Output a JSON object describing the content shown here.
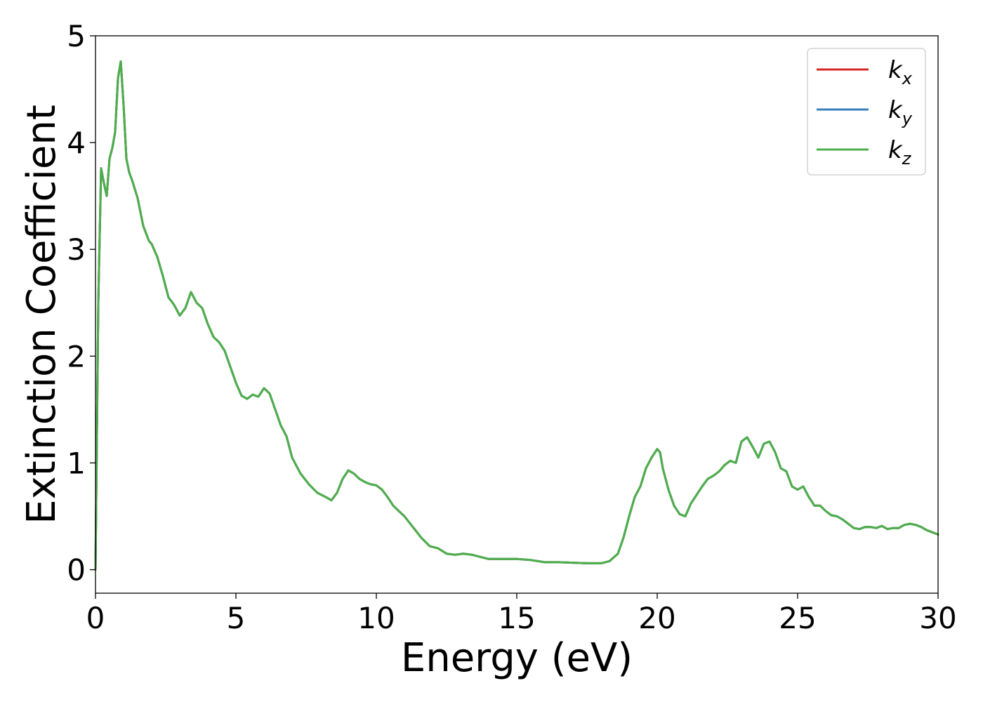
{
  "chart_data": {
    "type": "line",
    "title": "",
    "xlabel": "Energy (eV)",
    "ylabel": "Extinction Coefficient",
    "xlim": [
      0,
      30
    ],
    "ylim": [
      -0.22,
      5
    ],
    "xticks": [
      0,
      5,
      10,
      15,
      20,
      25,
      30
    ],
    "yticks": [
      0,
      1,
      2,
      3,
      4,
      5
    ],
    "grid": false,
    "legend_position": "top-right",
    "x": [
      0,
      0.1,
      0.2,
      0.3,
      0.4,
      0.5,
      0.6,
      0.7,
      0.8,
      0.9,
      1.0,
      1.1,
      1.2,
      1.3,
      1.5,
      1.7,
      1.9,
      2.0,
      2.2,
      2.4,
      2.6,
      2.8,
      3.0,
      3.2,
      3.4,
      3.6,
      3.8,
      4.0,
      4.2,
      4.4,
      4.6,
      4.8,
      5.0,
      5.2,
      5.4,
      5.6,
      5.8,
      6.0,
      6.2,
      6.4,
      6.6,
      6.8,
      7.0,
      7.3,
      7.6,
      7.9,
      8.2,
      8.4,
      8.6,
      8.8,
      9.0,
      9.2,
      9.4,
      9.6,
      9.8,
      10.0,
      10.2,
      10.4,
      10.6,
      10.8,
      11.0,
      11.3,
      11.6,
      11.9,
      12.2,
      12.5,
      12.8,
      13.1,
      13.4,
      13.7,
      14.0,
      14.5,
      15.0,
      15.5,
      16.0,
      16.5,
      17.0,
      17.5,
      18.0,
      18.3,
      18.6,
      18.8,
      19.0,
      19.2,
      19.4,
      19.6,
      19.8,
      20.0,
      20.1,
      20.2,
      20.4,
      20.6,
      20.8,
      21.0,
      21.2,
      21.4,
      21.6,
      21.8,
      22.0,
      22.2,
      22.4,
      22.6,
      22.8,
      23.0,
      23.2,
      23.4,
      23.6,
      23.8,
      24.0,
      24.2,
      24.4,
      24.6,
      24.8,
      25.0,
      25.2,
      25.4,
      25.6,
      25.8,
      26.0,
      26.2,
      26.4,
      26.6,
      26.8,
      27.0,
      27.2,
      27.4,
      27.6,
      27.8,
      28.0,
      28.2,
      28.4,
      28.6,
      28.8,
      29.0,
      29.2,
      29.4,
      29.6,
      29.8,
      30.0
    ],
    "series": [
      {
        "name": "k_x",
        "color": "#d62728",
        "values": [
          0,
          2.5,
          3.76,
          3.62,
          3.5,
          3.85,
          3.95,
          4.1,
          4.6,
          4.76,
          4.35,
          3.85,
          3.72,
          3.65,
          3.48,
          3.22,
          3.08,
          3.05,
          2.93,
          2.75,
          2.55,
          2.48,
          2.38,
          2.45,
          2.6,
          2.5,
          2.45,
          2.3,
          2.18,
          2.13,
          2.05,
          1.9,
          1.75,
          1.63,
          1.6,
          1.64,
          1.62,
          1.7,
          1.65,
          1.5,
          1.35,
          1.25,
          1.05,
          0.9,
          0.8,
          0.72,
          0.68,
          0.65,
          0.72,
          0.85,
          0.93,
          0.9,
          0.85,
          0.82,
          0.8,
          0.79,
          0.75,
          0.68,
          0.6,
          0.55,
          0.5,
          0.4,
          0.3,
          0.22,
          0.2,
          0.15,
          0.14,
          0.15,
          0.14,
          0.12,
          0.1,
          0.1,
          0.1,
          0.09,
          0.07,
          0.07,
          0.065,
          0.06,
          0.06,
          0.08,
          0.15,
          0.3,
          0.5,
          0.68,
          0.78,
          0.95,
          1.05,
          1.13,
          1.1,
          0.95,
          0.75,
          0.6,
          0.52,
          0.5,
          0.62,
          0.7,
          0.78,
          0.85,
          0.88,
          0.92,
          0.98,
          1.02,
          1.0,
          1.2,
          1.24,
          1.15,
          1.05,
          1.18,
          1.2,
          1.1,
          0.95,
          0.92,
          0.78,
          0.75,
          0.78,
          0.68,
          0.6,
          0.6,
          0.55,
          0.51,
          0.5,
          0.47,
          0.43,
          0.39,
          0.38,
          0.4,
          0.4,
          0.39,
          0.41,
          0.38,
          0.39,
          0.39,
          0.42,
          0.43,
          0.42,
          0.4,
          0.37,
          0.35,
          0.33
        ]
      },
      {
        "name": "k_y",
        "color": "#3a7dbf",
        "values": [
          0,
          2.5,
          3.76,
          3.62,
          3.5,
          3.85,
          3.95,
          4.1,
          4.6,
          4.76,
          4.35,
          3.85,
          3.72,
          3.65,
          3.48,
          3.22,
          3.08,
          3.05,
          2.93,
          2.75,
          2.55,
          2.48,
          2.38,
          2.45,
          2.6,
          2.5,
          2.45,
          2.3,
          2.18,
          2.13,
          2.05,
          1.9,
          1.75,
          1.63,
          1.6,
          1.64,
          1.62,
          1.7,
          1.65,
          1.5,
          1.35,
          1.25,
          1.05,
          0.9,
          0.8,
          0.72,
          0.68,
          0.65,
          0.72,
          0.85,
          0.93,
          0.9,
          0.85,
          0.82,
          0.8,
          0.79,
          0.75,
          0.68,
          0.6,
          0.55,
          0.5,
          0.4,
          0.3,
          0.22,
          0.2,
          0.15,
          0.14,
          0.15,
          0.14,
          0.12,
          0.1,
          0.1,
          0.1,
          0.09,
          0.07,
          0.07,
          0.065,
          0.06,
          0.06,
          0.08,
          0.15,
          0.3,
          0.5,
          0.68,
          0.78,
          0.95,
          1.05,
          1.13,
          1.1,
          0.95,
          0.75,
          0.6,
          0.52,
          0.5,
          0.62,
          0.7,
          0.78,
          0.85,
          0.88,
          0.92,
          0.98,
          1.02,
          1.0,
          1.2,
          1.24,
          1.15,
          1.05,
          1.18,
          1.2,
          1.1,
          0.95,
          0.92,
          0.78,
          0.75,
          0.78,
          0.68,
          0.6,
          0.6,
          0.55,
          0.51,
          0.5,
          0.47,
          0.43,
          0.39,
          0.38,
          0.4,
          0.4,
          0.39,
          0.41,
          0.38,
          0.39,
          0.39,
          0.42,
          0.43,
          0.42,
          0.4,
          0.37,
          0.35,
          0.33
        ]
      },
      {
        "name": "k_z",
        "color": "#4daf4a",
        "values": [
          0,
          2.5,
          3.76,
          3.62,
          3.5,
          3.85,
          3.95,
          4.1,
          4.6,
          4.76,
          4.35,
          3.85,
          3.72,
          3.65,
          3.48,
          3.22,
          3.08,
          3.05,
          2.93,
          2.75,
          2.55,
          2.48,
          2.38,
          2.45,
          2.6,
          2.5,
          2.45,
          2.3,
          2.18,
          2.13,
          2.05,
          1.9,
          1.75,
          1.63,
          1.6,
          1.64,
          1.62,
          1.7,
          1.65,
          1.5,
          1.35,
          1.25,
          1.05,
          0.9,
          0.8,
          0.72,
          0.68,
          0.65,
          0.72,
          0.85,
          0.93,
          0.9,
          0.85,
          0.82,
          0.8,
          0.79,
          0.75,
          0.68,
          0.6,
          0.55,
          0.5,
          0.4,
          0.3,
          0.22,
          0.2,
          0.15,
          0.14,
          0.15,
          0.14,
          0.12,
          0.1,
          0.1,
          0.1,
          0.09,
          0.07,
          0.07,
          0.065,
          0.06,
          0.06,
          0.08,
          0.15,
          0.3,
          0.5,
          0.68,
          0.78,
          0.95,
          1.05,
          1.13,
          1.1,
          0.95,
          0.75,
          0.6,
          0.52,
          0.5,
          0.62,
          0.7,
          0.78,
          0.85,
          0.88,
          0.92,
          0.98,
          1.02,
          1.0,
          1.2,
          1.24,
          1.15,
          1.05,
          1.18,
          1.2,
          1.1,
          0.95,
          0.92,
          0.78,
          0.75,
          0.78,
          0.68,
          0.6,
          0.6,
          0.55,
          0.51,
          0.5,
          0.47,
          0.43,
          0.39,
          0.38,
          0.4,
          0.4,
          0.39,
          0.41,
          0.38,
          0.39,
          0.39,
          0.42,
          0.43,
          0.42,
          0.4,
          0.37,
          0.35,
          0.33
        ]
      }
    ],
    "legend": [
      {
        "main": "k",
        "sub": "x",
        "color": "#d62728"
      },
      {
        "main": "k",
        "sub": "y",
        "color": "#3a7dbf"
      },
      {
        "main": "k",
        "sub": "z",
        "color": "#4daf4a"
      }
    ]
  }
}
